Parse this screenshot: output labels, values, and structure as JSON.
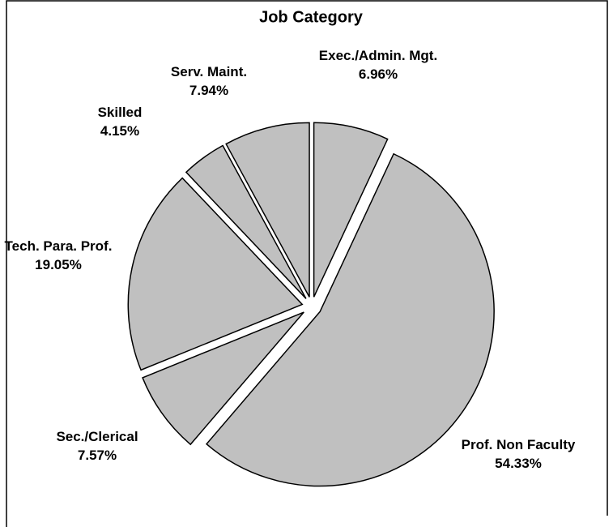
{
  "chart_data": {
    "type": "pie",
    "title": "Job Category",
    "categories": [
      "Exec./Admin. Mgt.",
      "Prof. Non Faculty",
      "Sec./Clerical",
      "Tech. Para. Prof.",
      "Skilled",
      "Serv. Maint."
    ],
    "values": [
      6.96,
      54.33,
      7.57,
      19.05,
      4.15,
      7.94
    ],
    "value_labels": [
      "6.96%",
      "54.33%",
      "7.57%",
      "19.05%",
      "4.15%",
      "7.94%"
    ],
    "color": "#c0c0c0"
  }
}
